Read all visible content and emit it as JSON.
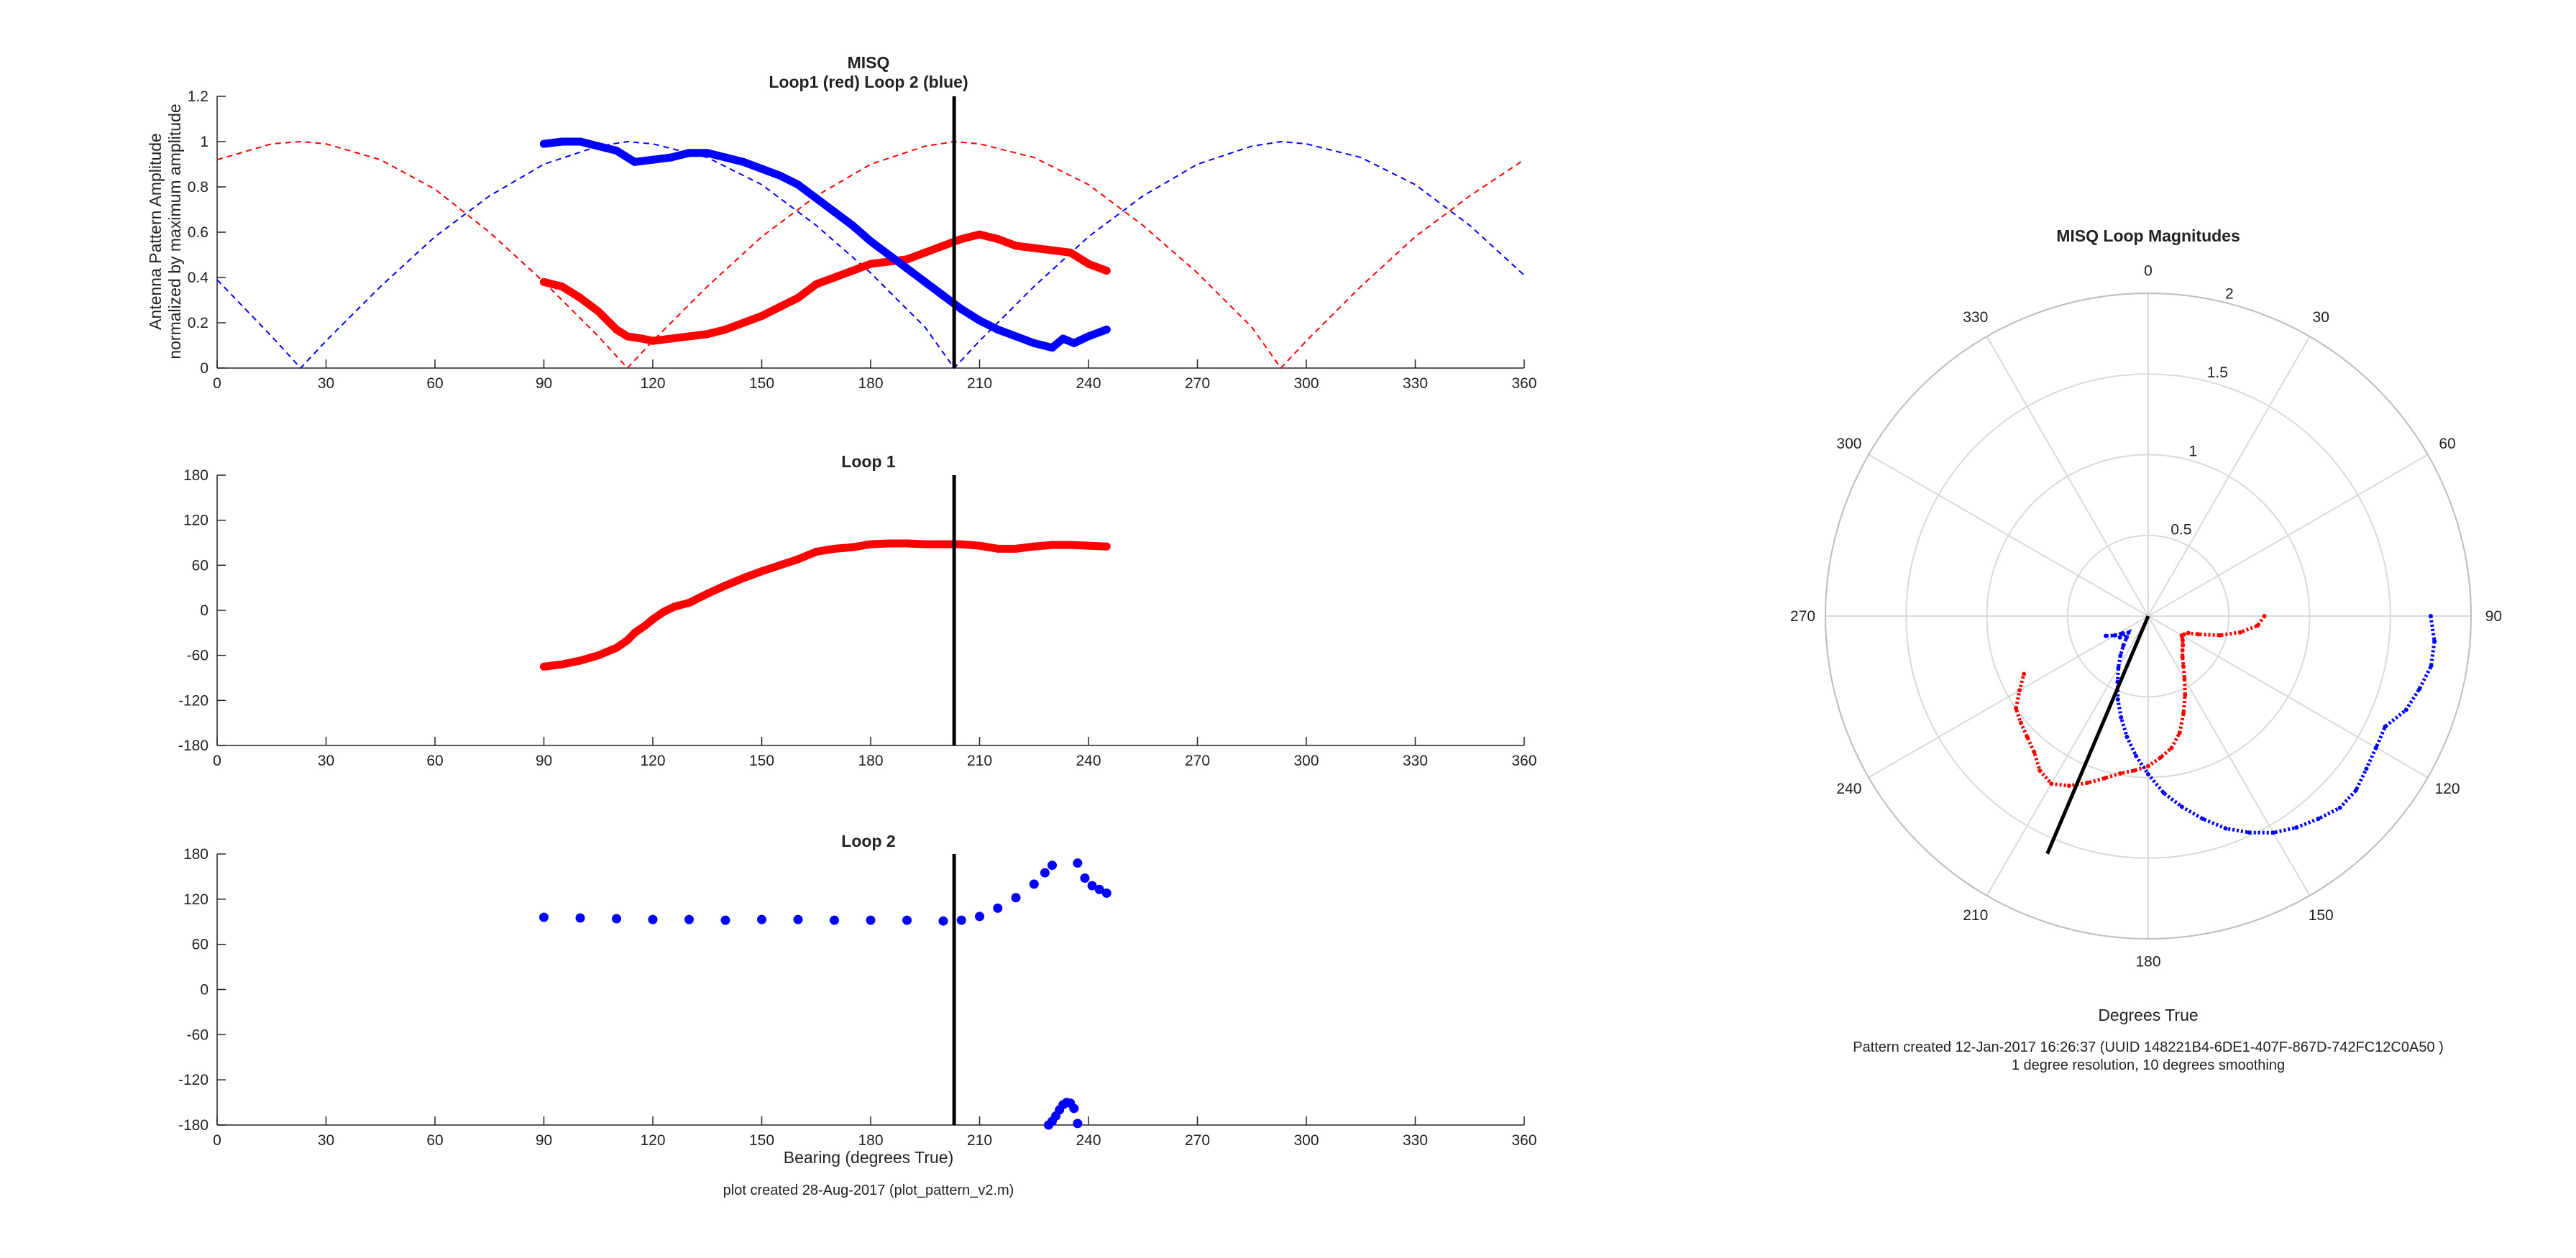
{
  "figure": {
    "footer_left": "plot created 28-Aug-2017 (plot_pattern_v2.m)",
    "polar_xlabel": "Degrees True",
    "polar_caption_1": "Pattern created 12-Jan-2017 16:26:37 (UUID 148221B4-6DE1-407F-867D-742FC12C0A50 )",
    "polar_caption_2": "1 degree resolution, 10 degrees smoothing"
  },
  "chart_data": [
    {
      "type": "line",
      "title": "MISQ",
      "subtitle": "Loop1 (red) Loop 2 (blue)",
      "ylabel_line1": "Antenna Pattern Amplitude",
      "ylabel_line2": "normalized by maximum amplitude",
      "xlabel": "",
      "xlim": [
        0,
        360
      ],
      "ylim": [
        0,
        1.2
      ],
      "xticks": [
        0,
        30,
        60,
        90,
        120,
        150,
        180,
        210,
        240,
        270,
        300,
        330,
        360
      ],
      "yticks": [
        "0",
        "0.2",
        "0.4",
        "0.6",
        "0.8",
        "1",
        "1.2"
      ],
      "ytick_values": [
        0,
        0.2,
        0.4,
        0.6,
        0.8,
        1.0,
        1.2
      ],
      "vline": 203,
      "series": [
        {
          "color": "#ff0000",
          "style": "dashed",
          "x": [
            0,
            15,
            23,
            30,
            45,
            60,
            75,
            90,
            105,
            113,
            120,
            135,
            150,
            165,
            180,
            195,
            203,
            210,
            225,
            240,
            255,
            270,
            285,
            293,
            300,
            315,
            330,
            345,
            360
          ],
          "y": [
            0.92,
            0.99,
            1.0,
            0.99,
            0.92,
            0.79,
            0.6,
            0.38,
            0.14,
            0.0,
            0.12,
            0.36,
            0.58,
            0.76,
            0.9,
            0.98,
            1.0,
            0.99,
            0.93,
            0.81,
            0.63,
            0.42,
            0.18,
            0.0,
            0.12,
            0.36,
            0.58,
            0.76,
            0.92
          ]
        },
        {
          "color": "#0000ff",
          "style": "dashed",
          "x": [
            0,
            15,
            23,
            30,
            45,
            60,
            75,
            90,
            105,
            113,
            120,
            135,
            150,
            165,
            180,
            195,
            203,
            210,
            225,
            240,
            255,
            270,
            285,
            293,
            300,
            315,
            330,
            345,
            360
          ],
          "y": [
            0.39,
            0.14,
            0.0,
            0.12,
            0.36,
            0.58,
            0.76,
            0.9,
            0.98,
            1.0,
            0.99,
            0.93,
            0.81,
            0.63,
            0.42,
            0.18,
            0.0,
            0.12,
            0.36,
            0.58,
            0.76,
            0.9,
            0.98,
            1.0,
            0.99,
            0.93,
            0.81,
            0.63,
            0.41
          ]
        },
        {
          "color": "#ff0000",
          "style": "thick",
          "x": [
            90,
            95,
            100,
            105,
            110,
            113,
            117,
            120,
            125,
            130,
            135,
            140,
            145,
            150,
            155,
            160,
            165,
            170,
            175,
            180,
            185,
            190,
            195,
            200,
            205,
            210,
            215,
            220,
            225,
            230,
            235,
            240,
            245
          ],
          "y": [
            0.38,
            0.36,
            0.31,
            0.25,
            0.17,
            0.14,
            0.13,
            0.12,
            0.13,
            0.14,
            0.15,
            0.17,
            0.2,
            0.23,
            0.27,
            0.31,
            0.37,
            0.4,
            0.43,
            0.46,
            0.47,
            0.48,
            0.51,
            0.54,
            0.57,
            0.59,
            0.57,
            0.54,
            0.53,
            0.52,
            0.51,
            0.46,
            0.43
          ]
        },
        {
          "color": "#0000ff",
          "style": "thick",
          "x": [
            90,
            95,
            100,
            105,
            110,
            115,
            120,
            125,
            130,
            135,
            140,
            145,
            150,
            155,
            160,
            165,
            170,
            175,
            180,
            185,
            190,
            195,
            200,
            205,
            210,
            215,
            220,
            225,
            230,
            233,
            236,
            240,
            245
          ],
          "y": [
            0.99,
            1.0,
            1.0,
            0.98,
            0.96,
            0.91,
            0.92,
            0.93,
            0.95,
            0.95,
            0.93,
            0.91,
            0.88,
            0.85,
            0.81,
            0.75,
            0.69,
            0.63,
            0.56,
            0.5,
            0.44,
            0.38,
            0.32,
            0.26,
            0.21,
            0.17,
            0.14,
            0.11,
            0.09,
            0.13,
            0.11,
            0.14,
            0.17
          ]
        }
      ]
    },
    {
      "type": "line",
      "title": "Loop 1",
      "xlabel": "",
      "xlim": [
        0,
        360
      ],
      "ylim": [
        -180,
        180
      ],
      "xticks": [
        0,
        30,
        60,
        90,
        120,
        150,
        180,
        210,
        240,
        270,
        300,
        330,
        360
      ],
      "yticks": [
        "-180",
        "-120",
        "-60",
        "0",
        "60",
        "120",
        "180"
      ],
      "ytick_values": [
        -180,
        -120,
        -60,
        0,
        60,
        120,
        180
      ],
      "vline": 203,
      "series": [
        {
          "color": "#ff0000",
          "style": "thick",
          "x": [
            90,
            95,
            100,
            105,
            110,
            113,
            115,
            118,
            120,
            123,
            126,
            130,
            135,
            140,
            145,
            150,
            155,
            160,
            165,
            170,
            175,
            180,
            185,
            190,
            195,
            200,
            205,
            210,
            215,
            220,
            225,
            230,
            235,
            240,
            245
          ],
          "y": [
            -75,
            -72,
            -67,
            -60,
            -50,
            -40,
            -30,
            -20,
            -12,
            -2,
            5,
            10,
            22,
            33,
            43,
            52,
            60,
            68,
            78,
            82,
            84,
            88,
            89,
            89,
            88,
            88,
            88,
            86,
            82,
            82,
            85,
            87,
            87,
            86,
            85
          ]
        }
      ]
    },
    {
      "type": "scatter",
      "title": "Loop 2",
      "xlabel": "Bearing (degrees True)",
      "xlim": [
        0,
        360
      ],
      "ylim": [
        -180,
        180
      ],
      "xticks": [
        0,
        30,
        60,
        90,
        120,
        150,
        180,
        210,
        240,
        270,
        300,
        330,
        360
      ],
      "yticks": [
        "-180",
        "-120",
        "-60",
        "0",
        "60",
        "120",
        "180"
      ],
      "ytick_values": [
        -180,
        -120,
        -60,
        0,
        60,
        120,
        180
      ],
      "vline": 203,
      "series": [
        {
          "color": "#0000ff",
          "style": "thick",
          "x": [
            90,
            100,
            110,
            120,
            130,
            140,
            150,
            160,
            170,
            180,
            190,
            200,
            205,
            210,
            215,
            220,
            225,
            228,
            230
          ],
          "y": [
            96,
            95,
            94,
            93,
            93,
            92,
            93,
            93,
            92,
            92,
            92,
            91,
            92,
            97,
            108,
            122,
            140,
            155,
            165
          ]
        },
        {
          "color": "#0000ff",
          "style": "thick",
          "x": [
            237,
            239,
            241,
            243,
            245
          ],
          "y": [
            168,
            148,
            138,
            133,
            128
          ]
        },
        {
          "color": "#0000ff",
          "style": "thick",
          "x": [
            229,
            230,
            231,
            232,
            233,
            234,
            235,
            236,
            237
          ],
          "y": [
            -180,
            -175,
            -168,
            -160,
            -153,
            -150,
            -151,
            -158,
            -178
          ]
        }
      ]
    },
    {
      "type": "polar",
      "title": "MISQ Loop Magnitudes",
      "rlim": [
        0,
        2
      ],
      "rticks": [
        "0.5",
        "1",
        "1.5",
        "2"
      ],
      "rtick_values": [
        0.5,
        1,
        1.5,
        2
      ],
      "theta_labels": [
        "0",
        "30",
        "60",
        "90",
        "120",
        "150",
        "180",
        "210",
        "240",
        "270",
        "300",
        "330"
      ],
      "theta_values": [
        0,
        30,
        60,
        90,
        120,
        150,
        180,
        210,
        240,
        270,
        300,
        330
      ],
      "bearing_line": {
        "theta": 203,
        "r": 1.6
      },
      "series": [
        {
          "color": "#ff0000",
          "theta": [
            90,
            95,
            100,
            105,
            110,
            113,
            117,
            120,
            125,
            130,
            135,
            140,
            145,
            150,
            155,
            160,
            165,
            170,
            175,
            180,
            185,
            190,
            195,
            200,
            205,
            210,
            215,
            220,
            225,
            230,
            235,
            240,
            245
          ],
          "r": [
            0.72,
            0.68,
            0.58,
            0.46,
            0.33,
            0.27,
            0.25,
            0.24,
            0.26,
            0.28,
            0.3,
            0.33,
            0.38,
            0.45,
            0.54,
            0.64,
            0.75,
            0.83,
            0.88,
            0.93,
            0.96,
            0.99,
            1.04,
            1.1,
            1.16,
            1.2,
            1.17,
            1.1,
            1.06,
            1.03,
            1.0,
            0.92,
            0.85
          ]
        },
        {
          "color": "#0000ff",
          "theta": [
            90,
            95,
            100,
            105,
            110,
            115,
            120,
            125,
            130,
            135,
            140,
            145,
            150,
            155,
            160,
            165,
            170,
            175,
            180,
            185,
            190,
            195,
            200,
            205,
            210,
            215,
            220,
            225,
            230,
            233,
            236,
            240,
            245
          ],
          "r": [
            1.75,
            1.78,
            1.78,
            1.74,
            1.7,
            1.62,
            1.63,
            1.65,
            1.68,
            1.68,
            1.64,
            1.6,
            1.55,
            1.48,
            1.4,
            1.3,
            1.2,
            1.1,
            0.98,
            0.87,
            0.76,
            0.65,
            0.55,
            0.45,
            0.37,
            0.3,
            0.24,
            0.19,
            0.16,
            0.22,
            0.19,
            0.24,
            0.29
          ]
        }
      ]
    }
  ]
}
